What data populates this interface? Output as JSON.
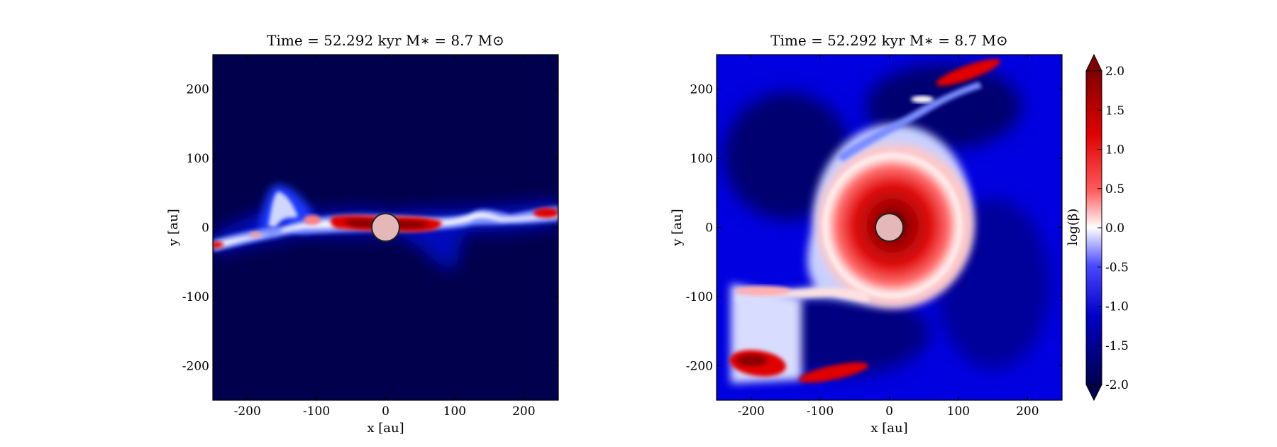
{
  "figure": {
    "panels": [
      {
        "title": "Time = 52.292 kyr    M$_*$ = 8.7 M$_\\odot$",
        "title_text": "Time = 52.292 kyr    M∗ = 8.7 M⊙"
      },
      {
        "title": "Time = 52.292 kyr    M$_*$ = 8.7 M$_\\odot$",
        "title_text": "Time = 52.292 kyr    M∗ = 8.7 M⊙"
      }
    ],
    "colorbar_label": "log(β)"
  },
  "chart_data": [
    {
      "type": "heatmap",
      "title": "Time = 52.292 kyr    M∗ = 8.7 M⊙",
      "xlabel": "x [au]",
      "ylabel": "y [au]",
      "xlim": [
        -250,
        250
      ],
      "ylim": [
        -250,
        250
      ],
      "xticks": [
        -200,
        -100,
        0,
        100,
        200
      ],
      "xtick_labels": [
        "-200",
        "-100",
        "0",
        "100",
        "200"
      ],
      "yticks": [
        200,
        100,
        0,
        -100,
        -200
      ],
      "ytick_labels": [
        "200",
        "100",
        "0",
        "-100",
        "-200"
      ],
      "quantity": "log(β)",
      "background_value": -2.0,
      "features": [
        {
          "kind": "disk",
          "description": "edge-on disk band along y≈0",
          "x_range": [
            -250,
            250
          ],
          "y_center": 0,
          "peak_value": 2.0
        }
      ],
      "sink": {
        "x": 0,
        "y": 0,
        "radius_au": 20
      }
    },
    {
      "type": "heatmap",
      "title": "Time = 52.292 kyr    M∗ = 8.7 M⊙",
      "xlabel": "x [au]",
      "ylabel": "y [au]",
      "xlim": [
        -250,
        250
      ],
      "ylim": [
        -250,
        250
      ],
      "xticks": [
        -200,
        -100,
        0,
        100,
        200
      ],
      "xtick_labels": [
        "-200",
        "-100",
        "0",
        "100",
        "200"
      ],
      "yticks": [
        200,
        100,
        0,
        -100,
        -200
      ],
      "ytick_labels": [
        "200",
        "100",
        "0",
        "-100",
        "-200"
      ],
      "quantity": "log(β)",
      "background_value": -1.3,
      "features": [
        {
          "kind": "face-on disk",
          "center": [
            0,
            0
          ],
          "radius_au": 110,
          "peak_value": 2.0
        },
        {
          "kind": "spiral arm",
          "center": [
            0,
            0
          ],
          "peak_value": 0.5
        }
      ],
      "sink": {
        "x": 0,
        "y": 0,
        "radius_au": 20
      }
    }
  ],
  "colorbar": {
    "label": "log(β)",
    "min": -2.0,
    "max": 2.0,
    "extend": "both",
    "ticks": [
      2.0,
      1.5,
      1.0,
      0.5,
      0.0,
      -0.5,
      -1.0,
      -1.5,
      -2.0
    ],
    "tick_labels": [
      "2.0",
      "1.5",
      "1.0",
      "0.5",
      "0.0",
      "-0.5",
      "-1.0",
      "-1.5",
      "-2.0"
    ],
    "colors": [
      "#00004d",
      "#0000ff",
      "#ffffff",
      "#ff0000",
      "#800000"
    ]
  }
}
